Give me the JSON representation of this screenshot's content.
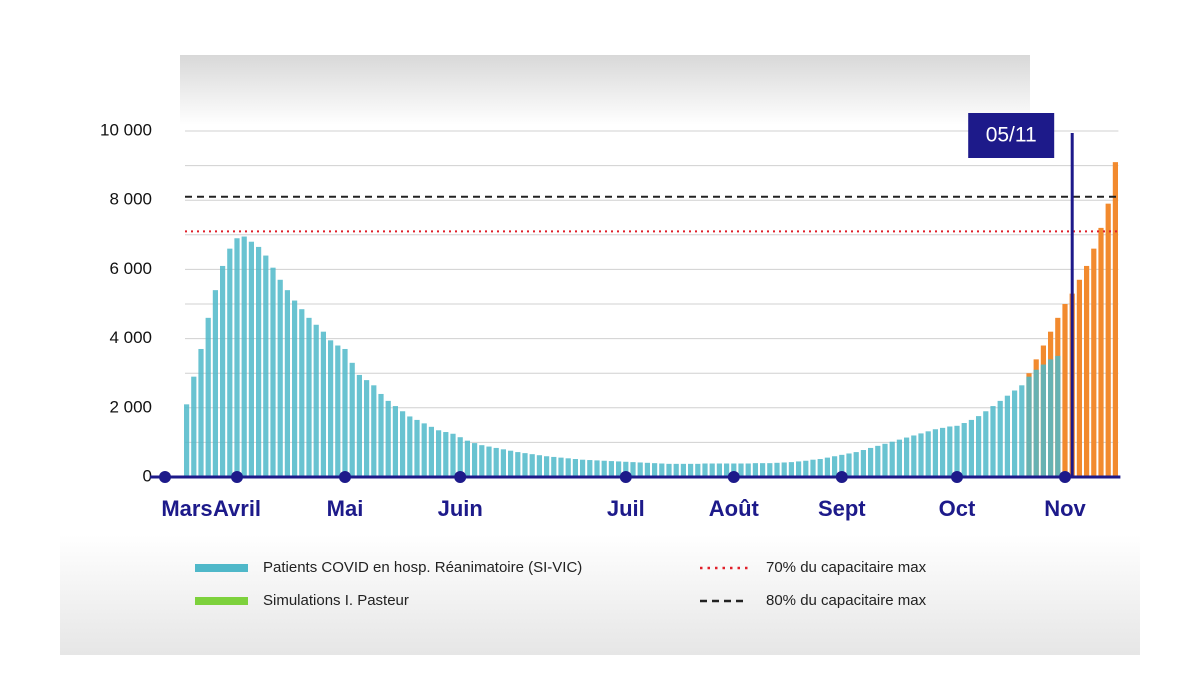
{
  "chart_data": {
    "type": "bar",
    "categories": [
      "Mars",
      null,
      null,
      null,
      null,
      null,
      null,
      null,
      null,
      null,
      "Avril",
      null,
      null,
      null,
      null,
      null,
      null,
      null,
      null,
      null,
      null,
      null,
      null,
      null,
      null,
      "Mai",
      null,
      null,
      null,
      null,
      null,
      null,
      null,
      null,
      null,
      null,
      null,
      null,
      null,
      null,
      null,
      "Juin",
      null,
      null,
      null,
      null,
      null,
      null,
      null,
      null,
      null,
      null,
      null,
      null,
      null,
      null,
      null,
      null,
      null,
      null,
      null,
      null,
      null,
      null,
      "Juil",
      null,
      null,
      null,
      null,
      null,
      null,
      null,
      null,
      null,
      null,
      null,
      null,
      null,
      null,
      "Août",
      null,
      null,
      null,
      null,
      null,
      null,
      null,
      null,
      null,
      null,
      null,
      null,
      null,
      null,
      "Sept",
      null,
      null,
      null,
      null,
      null,
      null,
      null,
      null,
      null,
      null,
      null,
      null,
      null,
      null,
      null,
      "Oct",
      null,
      null,
      null,
      null,
      null,
      null,
      null,
      null,
      null,
      null,
      null,
      null,
      null,
      null,
      "Nov",
      null,
      null,
      null,
      null,
      null,
      null,
      null
    ],
    "series": [
      {
        "name": "Simulations I. Pasteur",
        "color": "#f28a2e",
        "legend_color": "#7dd13c",
        "values": [
          null,
          null,
          null,
          null,
          null,
          null,
          null,
          null,
          null,
          null,
          null,
          null,
          null,
          null,
          null,
          null,
          null,
          null,
          null,
          null,
          null,
          null,
          null,
          null,
          null,
          null,
          null,
          null,
          null,
          null,
          null,
          null,
          null,
          null,
          null,
          null,
          null,
          null,
          null,
          null,
          null,
          null,
          null,
          null,
          null,
          null,
          null,
          null,
          null,
          null,
          null,
          null,
          null,
          null,
          null,
          null,
          null,
          null,
          null,
          null,
          null,
          null,
          null,
          null,
          null,
          null,
          null,
          null,
          null,
          null,
          null,
          null,
          null,
          null,
          null,
          null,
          null,
          null,
          null,
          null,
          null,
          null,
          null,
          null,
          null,
          null,
          null,
          null,
          null,
          null,
          null,
          null,
          null,
          null,
          null,
          null,
          null,
          null,
          null,
          null,
          null,
          null,
          null,
          null,
          null,
          null,
          null,
          null,
          null,
          null,
          null,
          null,
          null,
          null,
          null,
          null,
          null,
          null,
          null,
          null,
          3000,
          3400,
          3800,
          4200,
          4600,
          5000,
          5300,
          5700,
          6100,
          6600,
          7200,
          7900,
          9100
        ]
      },
      {
        "name": "Patients COVID en hosp. Réanimatoire (SI-VIC)",
        "color": "#4fb8c9",
        "values": [
          null,
          null,
          null,
          2100,
          2900,
          3700,
          4600,
          5400,
          6100,
          6600,
          6900,
          6950,
          6800,
          6650,
          6400,
          6050,
          5700,
          5400,
          5100,
          4850,
          4600,
          4400,
          4200,
          3950,
          3800,
          3700,
          3300,
          2950,
          2800,
          2650,
          2400,
          2200,
          2050,
          1900,
          1750,
          1650,
          1550,
          1450,
          1350,
          1300,
          1250,
          1150,
          1050,
          980,
          920,
          880,
          840,
          800,
          760,
          720,
          690,
          660,
          630,
          600,
          580,
          560,
          540,
          520,
          500,
          490,
          480,
          470,
          460,
          450,
          440,
          430,
          420,
          410,
          400,
          390,
          380,
          380,
          380,
          380,
          380,
          390,
          390,
          390,
          390,
          390,
          390,
          390,
          400,
          400,
          400,
          410,
          420,
          430,
          450,
          470,
          500,
          520,
          560,
          600,
          640,
          680,
          720,
          780,
          840,
          900,
          960,
          1020,
          1080,
          1140,
          1200,
          1260,
          1320,
          1380,
          1420,
          1460,
          1480,
          1560,
          1650,
          1760,
          1900,
          2050,
          2200,
          2350,
          2500,
          2650,
          2900,
          3100,
          3250,
          3400,
          3500,
          null,
          null,
          null,
          null,
          null,
          null,
          null,
          null
        ]
      }
    ],
    "ylim": [
      0,
      10000
    ],
    "yticks": [
      0,
      {
        "value": 2000,
        "label": "2 000"
      },
      {
        "value": 4000,
        "label": "4 000"
      },
      {
        "value": 6000,
        "label": "6 000"
      },
      {
        "value": 8000,
        "label": "8 000"
      },
      {
        "value": 10000,
        "label": "10 000"
      }
    ],
    "minor_yticks": [
      1000,
      3000,
      5000,
      7000,
      9000
    ],
    "grid": true,
    "reference_lines": [
      {
        "value": 7100,
        "label": "70% du capacitaire max",
        "color": "#e0202a",
        "style": "dotted"
      },
      {
        "value": 8100,
        "label": "80% du capacitaire max",
        "color": "#222222",
        "style": "dashed"
      }
    ],
    "annotation": {
      "label": "05/11",
      "at": 126,
      "color": "#1d1a8a"
    }
  }
}
